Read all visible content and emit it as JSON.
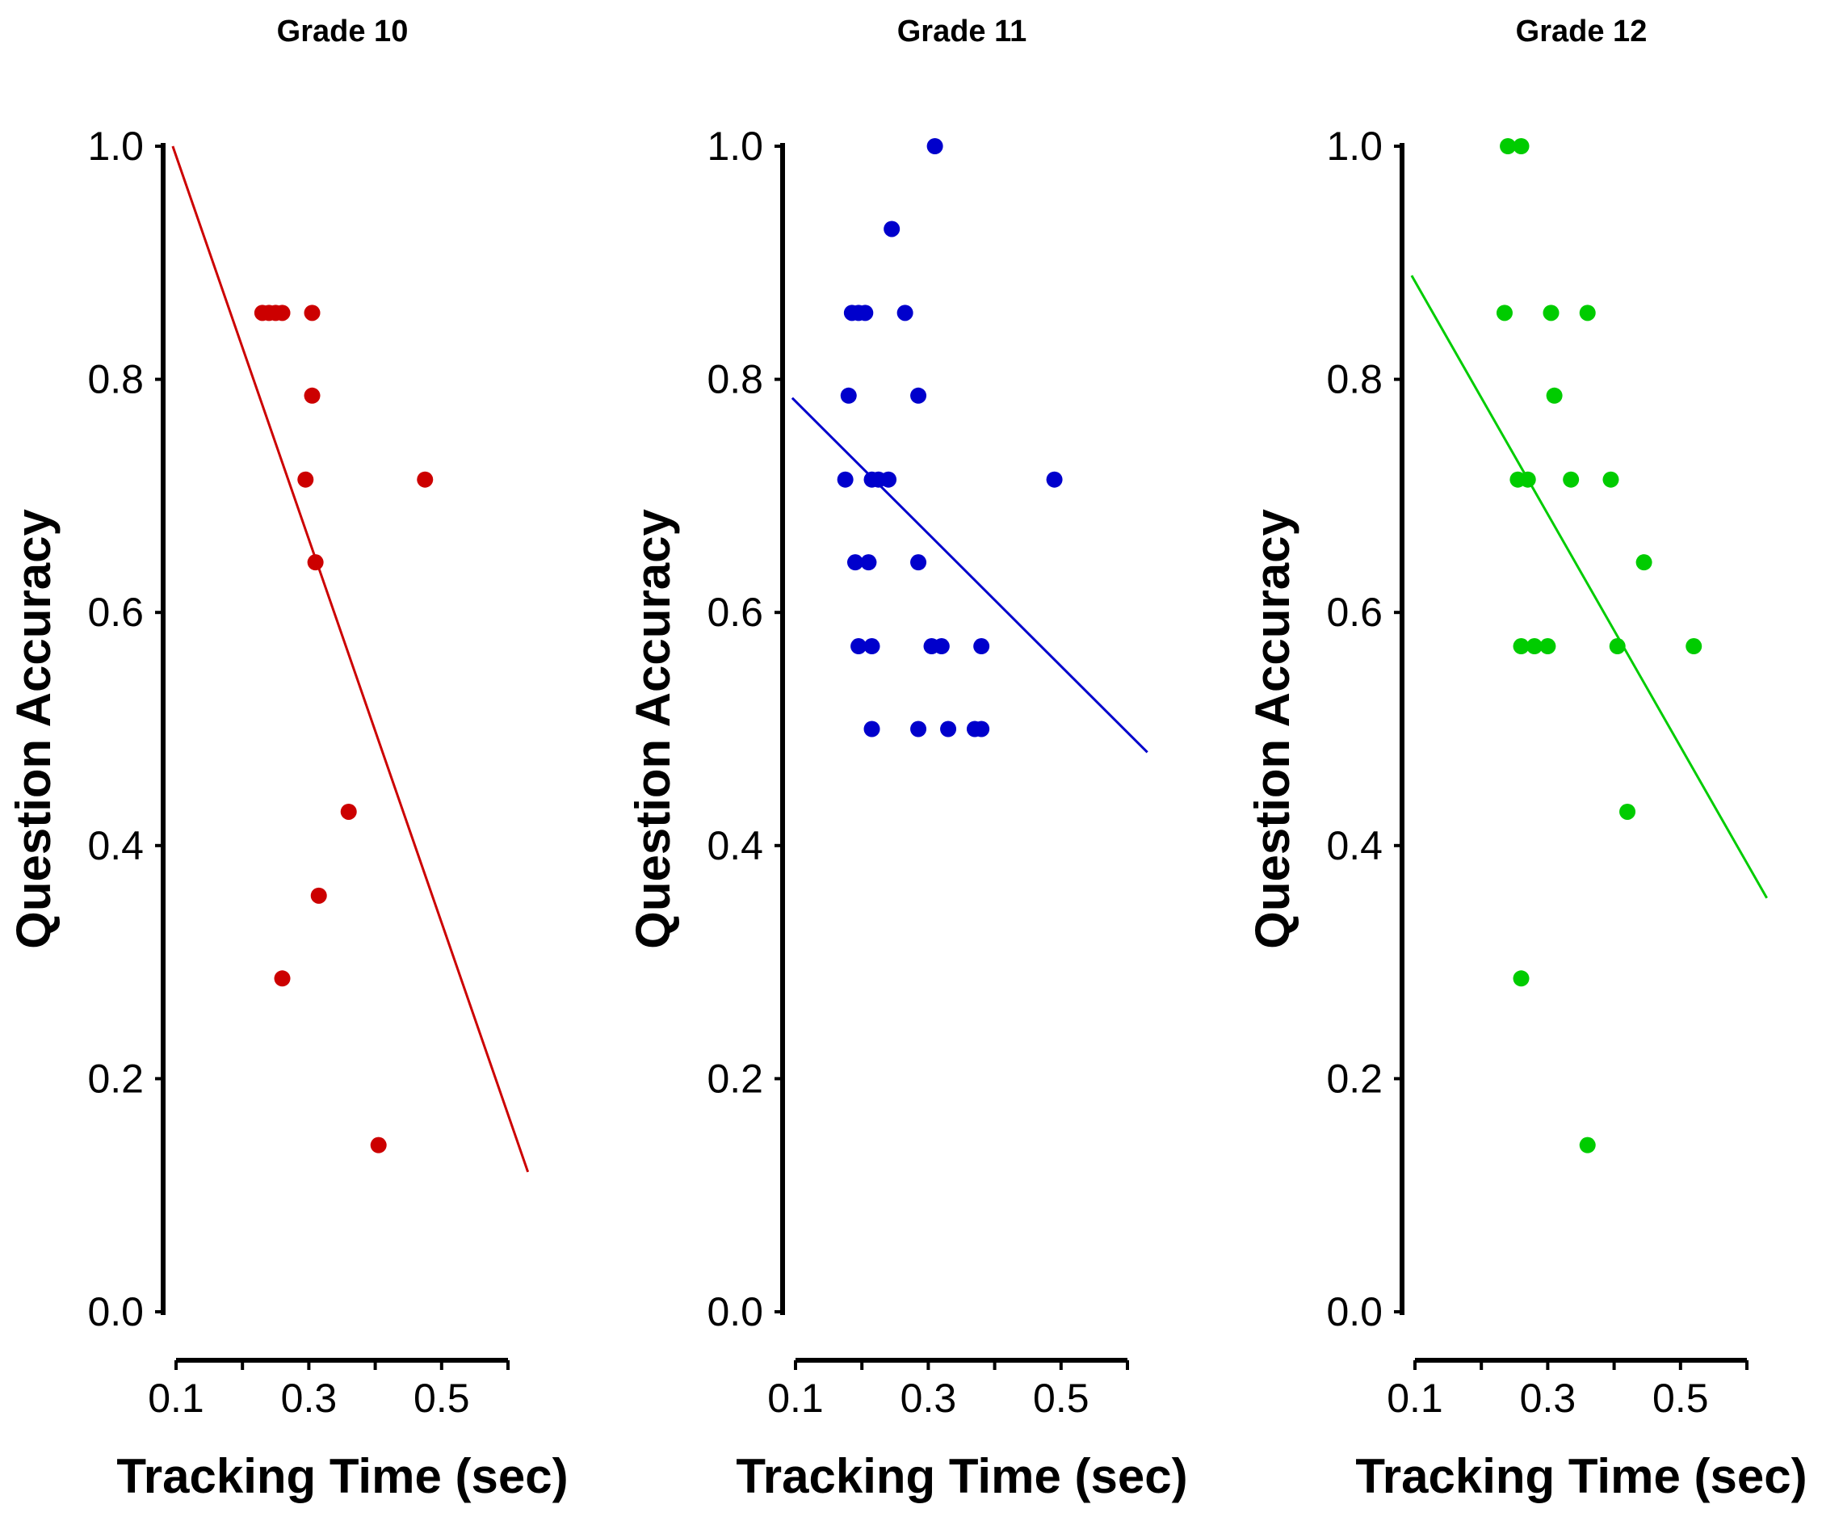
{
  "chart_data": [
    {
      "type": "scatter",
      "title": "Grade 10",
      "xlabel": "Tracking Time (sec)",
      "ylabel": "Question Accuracy",
      "xlim": [
        0.1,
        0.6
      ],
      "ylim": [
        0.0,
        1.0
      ],
      "xticks": [
        0.1,
        0.2,
        0.3,
        0.4,
        0.5,
        0.6
      ],
      "xtick_labels": [
        "0.1",
        "",
        "0.3",
        "",
        "0.5",
        ""
      ],
      "yticks": [
        0.0,
        0.2,
        0.4,
        0.6,
        0.8,
        1.0
      ],
      "ytick_labels": [
        "0.0",
        "0.2",
        "0.4",
        "0.6",
        "0.8",
        "1.0"
      ],
      "color": "#cc0000",
      "points": [
        {
          "x": 0.23,
          "y": 0.857
        },
        {
          "x": 0.24,
          "y": 0.857
        },
        {
          "x": 0.25,
          "y": 0.857
        },
        {
          "x": 0.26,
          "y": 0.857
        },
        {
          "x": 0.305,
          "y": 0.857
        },
        {
          "x": 0.305,
          "y": 0.786
        },
        {
          "x": 0.295,
          "y": 0.714
        },
        {
          "x": 0.475,
          "y": 0.714
        },
        {
          "x": 0.31,
          "y": 0.643
        },
        {
          "x": 0.36,
          "y": 0.429
        },
        {
          "x": 0.315,
          "y": 0.357
        },
        {
          "x": 0.26,
          "y": 0.286
        },
        {
          "x": 0.405,
          "y": 0.143
        }
      ],
      "fit_line": {
        "x": [
          0.095,
          0.63
        ],
        "y": [
          1.0,
          0.12
        ]
      }
    },
    {
      "type": "scatter",
      "title": "Grade 11",
      "xlabel": "Tracking Time (sec)",
      "ylabel": "Question Accuracy",
      "xlim": [
        0.1,
        0.6
      ],
      "ylim": [
        0.0,
        1.0
      ],
      "xticks": [
        0.1,
        0.2,
        0.3,
        0.4,
        0.5,
        0.6
      ],
      "xtick_labels": [
        "0.1",
        "",
        "0.3",
        "",
        "0.5",
        ""
      ],
      "yticks": [
        0.0,
        0.2,
        0.4,
        0.6,
        0.8,
        1.0
      ],
      "ytick_labels": [
        "0.0",
        "0.2",
        "0.4",
        "0.6",
        "0.8",
        "1.0"
      ],
      "color": "#0000cc",
      "points": [
        {
          "x": 0.31,
          "y": 1.0
        },
        {
          "x": 0.245,
          "y": 0.929
        },
        {
          "x": 0.185,
          "y": 0.857
        },
        {
          "x": 0.195,
          "y": 0.857
        },
        {
          "x": 0.205,
          "y": 0.857
        },
        {
          "x": 0.265,
          "y": 0.857
        },
        {
          "x": 0.18,
          "y": 0.786
        },
        {
          "x": 0.285,
          "y": 0.786
        },
        {
          "x": 0.175,
          "y": 0.714
        },
        {
          "x": 0.215,
          "y": 0.714
        },
        {
          "x": 0.225,
          "y": 0.714
        },
        {
          "x": 0.24,
          "y": 0.714
        },
        {
          "x": 0.49,
          "y": 0.714
        },
        {
          "x": 0.19,
          "y": 0.643
        },
        {
          "x": 0.21,
          "y": 0.643
        },
        {
          "x": 0.285,
          "y": 0.643
        },
        {
          "x": 0.195,
          "y": 0.571
        },
        {
          "x": 0.215,
          "y": 0.571
        },
        {
          "x": 0.305,
          "y": 0.571
        },
        {
          "x": 0.32,
          "y": 0.571
        },
        {
          "x": 0.38,
          "y": 0.571
        },
        {
          "x": 0.215,
          "y": 0.5
        },
        {
          "x": 0.285,
          "y": 0.5
        },
        {
          "x": 0.33,
          "y": 0.5
        },
        {
          "x": 0.37,
          "y": 0.5
        },
        {
          "x": 0.38,
          "y": 0.5
        }
      ],
      "fit_line": {
        "x": [
          0.095,
          0.63
        ],
        "y": [
          0.784,
          0.48
        ]
      }
    },
    {
      "type": "scatter",
      "title": "Grade 12",
      "xlabel": "Tracking Time (sec)",
      "ylabel": "Question Accuracy",
      "xlim": [
        0.1,
        0.6
      ],
      "ylim": [
        0.0,
        1.0
      ],
      "xticks": [
        0.1,
        0.2,
        0.3,
        0.4,
        0.5,
        0.6
      ],
      "xtick_labels": [
        "0.1",
        "",
        "0.3",
        "",
        "0.5",
        ""
      ],
      "yticks": [
        0.0,
        0.2,
        0.4,
        0.6,
        0.8,
        1.0
      ],
      "ytick_labels": [
        "0.0",
        "0.2",
        "0.4",
        "0.6",
        "0.8",
        "1.0"
      ],
      "color": "#00cc00",
      "points": [
        {
          "x": 0.24,
          "y": 1.0
        },
        {
          "x": 0.26,
          "y": 1.0
        },
        {
          "x": 0.235,
          "y": 0.857
        },
        {
          "x": 0.305,
          "y": 0.857
        },
        {
          "x": 0.36,
          "y": 0.857
        },
        {
          "x": 0.31,
          "y": 0.786
        },
        {
          "x": 0.255,
          "y": 0.714
        },
        {
          "x": 0.27,
          "y": 0.714
        },
        {
          "x": 0.335,
          "y": 0.714
        },
        {
          "x": 0.395,
          "y": 0.714
        },
        {
          "x": 0.445,
          "y": 0.643
        },
        {
          "x": 0.26,
          "y": 0.571
        },
        {
          "x": 0.28,
          "y": 0.571
        },
        {
          "x": 0.3,
          "y": 0.571
        },
        {
          "x": 0.405,
          "y": 0.571
        },
        {
          "x": 0.52,
          "y": 0.571
        },
        {
          "x": 0.42,
          "y": 0.429
        },
        {
          "x": 0.26,
          "y": 0.286
        },
        {
          "x": 0.36,
          "y": 0.143
        }
      ],
      "fit_line": {
        "x": [
          0.095,
          0.63
        ],
        "y": [
          0.889,
          0.355
        ]
      }
    }
  ]
}
